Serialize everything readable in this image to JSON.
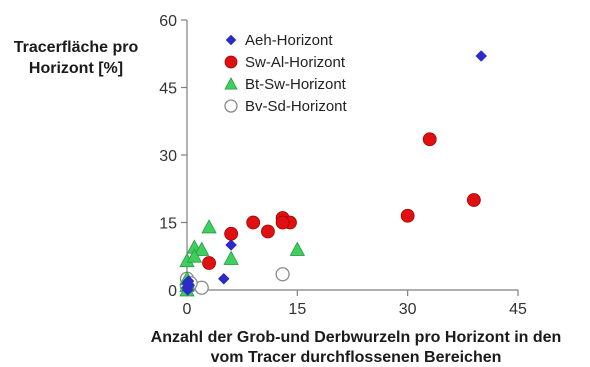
{
  "chart_data": {
    "type": "scatter",
    "ylabel_lines": [
      "Tracerfläche pro",
      "Horizont [%]"
    ],
    "xlabel_lines": [
      "Anzahl der Grob-und Derbwurzeln pro Horizont in den",
      "vom Tracer durchflossenen Bereichen"
    ],
    "xlim": [
      0,
      45
    ],
    "ylim": [
      0,
      60
    ],
    "xticks": [
      0,
      15,
      30,
      45
    ],
    "yticks": [
      0,
      15,
      30,
      45,
      60
    ],
    "legend_position": "top-left",
    "series": [
      {
        "name": "Aeh-Horizont",
        "marker": "diamond",
        "color": "#2b2bc8",
        "points": [
          [
            40,
            52
          ],
          [
            6,
            10
          ],
          [
            5,
            2.5
          ],
          [
            0,
            1.5
          ],
          [
            0,
            0.5
          ],
          [
            0.2,
            2
          ],
          [
            0.3,
            1
          ],
          [
            0.1,
            0
          ]
        ]
      },
      {
        "name": "Sw-Al-Horizont",
        "marker": "circle",
        "color": "#e01010",
        "points": [
          [
            33,
            33.5
          ],
          [
            39,
            20
          ],
          [
            30,
            16.5
          ],
          [
            13,
            16
          ],
          [
            14,
            15
          ],
          [
            9,
            15
          ],
          [
            11,
            13
          ],
          [
            6,
            12.5
          ],
          [
            3,
            6
          ],
          [
            13,
            15
          ]
        ]
      },
      {
        "name": "Bt-Sw-Horizont",
        "marker": "triangle",
        "color": "#3fcf5f",
        "points": [
          [
            3,
            14
          ],
          [
            15,
            9
          ],
          [
            1,
            9.5
          ],
          [
            2,
            9
          ],
          [
            0,
            6.5
          ],
          [
            1,
            7.5
          ],
          [
            6,
            7
          ],
          [
            0,
            2.5
          ],
          [
            0,
            1
          ],
          [
            0,
            0
          ]
        ]
      },
      {
        "name": "Bv-Sd-Horizont",
        "marker": "open-circle",
        "color": "#8a8a8a",
        "points": [
          [
            13,
            3.5
          ],
          [
            2,
            0.5
          ],
          [
            0,
            2.5
          ],
          [
            0.5,
            1.5
          ],
          [
            0,
            0.8
          ]
        ]
      }
    ]
  }
}
